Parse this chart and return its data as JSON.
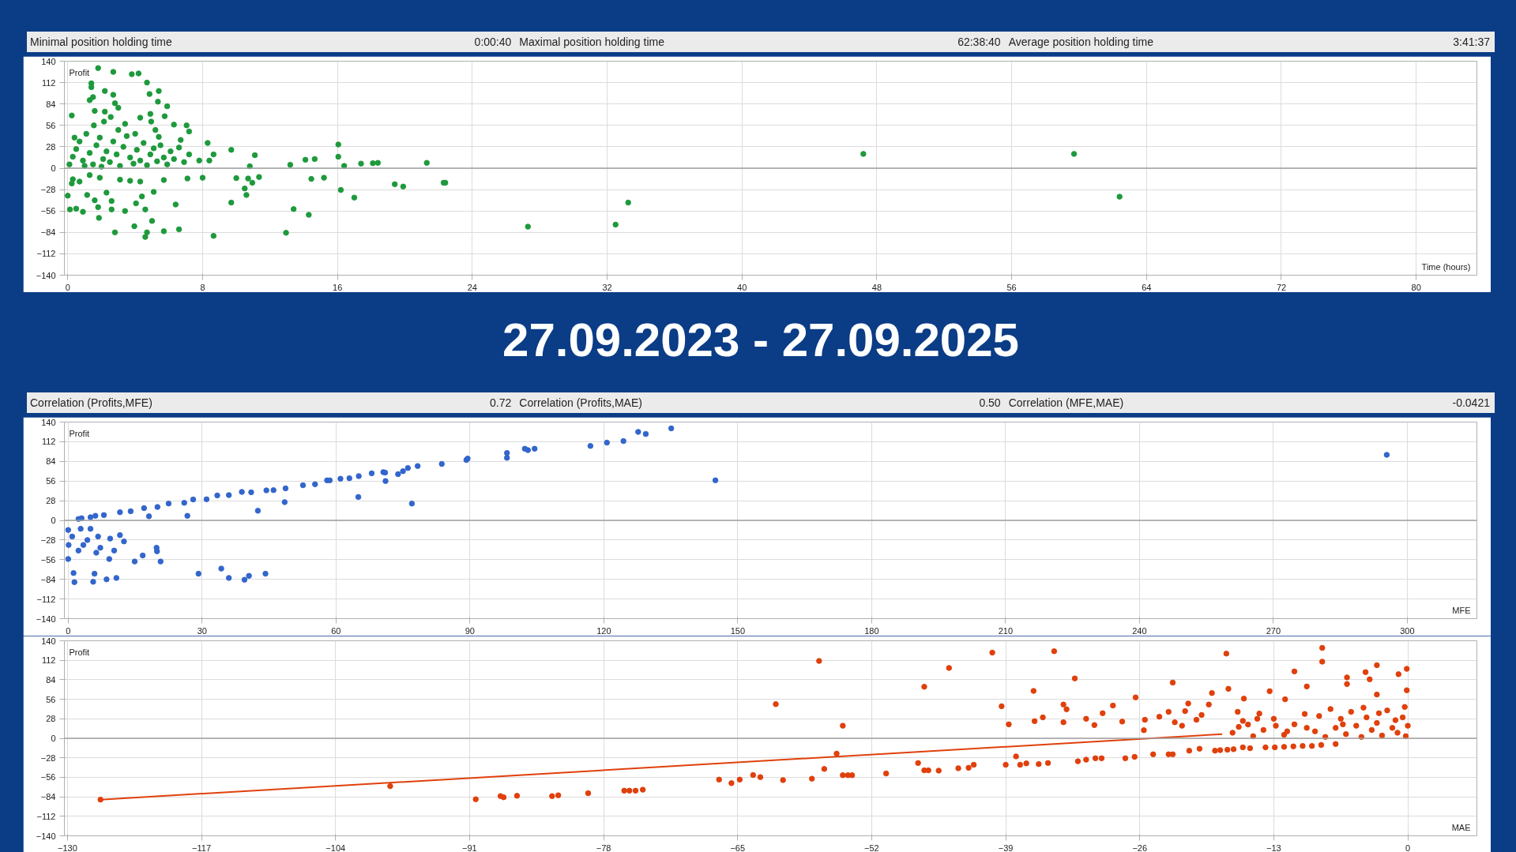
{
  "chart_data": [
    {
      "type": "scatter",
      "xlabel": "Time (hours)",
      "ylabel": "Profit",
      "annotations": [
        "Minimal position holding time",
        "0:00:40",
        "Maximal position holding time",
        "62:38:40",
        "Average position holding time",
        "3:41:37"
      ],
      "xlim": [
        -0.2,
        83.6
      ],
      "ylim": [
        -140,
        140
      ],
      "xticks": [
        0,
        8,
        16,
        24,
        32,
        40,
        48,
        56,
        64,
        72,
        80
      ],
      "yticks": [
        -140,
        -112,
        -84,
        -56,
        -28,
        0,
        28,
        56,
        84,
        112,
        140
      ],
      "grid": true,
      "marker": "circle",
      "ref_lines": [
        {
          "axis": "y",
          "value": 0,
          "color": "#a0a0a0"
        }
      ],
      "series": [
        {
          "color": "#1e9a3c",
          "x": [
            1.8,
            2.7,
            3.8,
            4.2,
            4.7,
            1.4,
            1.4,
            2.2,
            5.4,
            4.85,
            2.7,
            1.5,
            1.3,
            5.35,
            2.8,
            5.9,
            3.0,
            1.6,
            2.2,
            0.24,
            4.9,
            2.55,
            4.3,
            5.75,
            2.15,
            4.95,
            1.55,
            6.3,
            7.05,
            3.4,
            5.2,
            7.2,
            5.4,
            6.7,
            8.3,
            9.7,
            11.1,
            8.65,
            16.05,
            16.05,
            16.4,
            17.4,
            18.1,
            18.4,
            21.3,
            13.2,
            14.1,
            14.65,
            10.8,
            7.8,
            8.4,
            0.1,
            0.3,
            0.5,
            0.7,
            0.9,
            1.1,
            1.3,
            1.5,
            1.7,
            1.9,
            2.1,
            2.3,
            2.5,
            2.7,
            2.9,
            3.1,
            3.3,
            3.5,
            3.7,
            3.9,
            4.1,
            4.3,
            4.5,
            4.7,
            4.9,
            5.1,
            5.3,
            5.5,
            5.7,
            5.9,
            6.1,
            6.3,
            6.6,
            6.9,
            7.2,
            0.4,
            1.0,
            2.0,
            3.0,
            4.0,
            0.0,
            0.13,
            0.5,
            0.9,
            0.24,
            0.3,
            0.7,
            1.15,
            1.3,
            1.6,
            1.8,
            1.85,
            1.9,
            2.3,
            2.6,
            2.6,
            2.8,
            3.1,
            3.4,
            3.7,
            3.95,
            4.05,
            4.3,
            4.4,
            4.6,
            4.6,
            4.7,
            5.0,
            5.1,
            5.7,
            5.7,
            6.4,
            6.6,
            7.1,
            8.0,
            8.65,
            9.7,
            10.0,
            10.5,
            10.6,
            10.7,
            10.95,
            11.35,
            12.95,
            13.4,
            14.3,
            14.45,
            15.2,
            16.2,
            17.0,
            19.4,
            19.9,
            22.3,
            22.4,
            27.3,
            32.5,
            33.25,
            47.2,
            59.7,
            62.4
          ],
          "values": [
            131,
            126,
            123,
            124,
            112,
            111,
            106,
            101,
            101,
            97,
            96,
            93,
            89,
            87,
            85,
            81,
            79,
            75,
            74,
            69,
            71,
            67,
            66,
            68,
            61,
            61,
            56,
            57,
            56,
            58,
            50,
            48,
            41,
            37,
            33,
            24,
            17,
            18,
            31,
            15,
            3,
            6,
            6.5,
            7,
            7,
            4.5,
            11,
            12,
            2.5,
            10,
            10,
            5,
            15,
            25,
            35,
            10,
            45,
            20,
            5,
            30,
            40,
            12,
            22,
            8,
            35,
            18,
            3,
            28,
            42,
            14,
            6,
            24,
            10,
            33,
            4,
            18,
            26,
            9,
            30,
            14,
            5,
            22,
            12,
            27,
            8,
            18,
            40,
            3,
            2,
            50,
            45,
            -36,
            -54,
            -53,
            -57,
            -20,
            -14.5,
            -17.5,
            -35,
            -9,
            -42,
            -51,
            -65,
            -12.5,
            -32,
            -43,
            -54,
            -84,
            -15,
            -56,
            -16.5,
            -76,
            -46,
            -17.5,
            -37,
            -54,
            -90,
            -84,
            -69,
            -31,
            -15.5,
            -82.5,
            -47.5,
            -80,
            -13.5,
            -12.5,
            -88.5,
            -45,
            -13,
            -26.5,
            -35,
            -13.5,
            -19,
            -11.5,
            -84.5,
            -53.5,
            -61,
            -14,
            -12.5,
            -28.5,
            -38.5,
            -21,
            -24,
            -19,
            -19,
            -76.5,
            -73.8,
            -45,
            18.7,
            18.7,
            -37.3
          ]
        }
      ]
    },
    {
      "type": "other",
      "title": "27.09.2023 - 27.09.2025"
    },
    {
      "type": "scatter",
      "xlabel": "MFE",
      "ylabel": "Profit",
      "annotations": [
        "Correlation (Profits,MFE)",
        "0.72",
        "Correlation (Profits,MAE)",
        "0.50",
        "Correlation (MFE,MAE)",
        "-0.0421"
      ],
      "xlim": [
        -0.85,
        315.6
      ],
      "ylim": [
        -140,
        140
      ],
      "xticks": [
        0,
        30,
        60,
        90,
        120,
        150,
        180,
        210,
        240,
        270,
        300
      ],
      "yticks": [
        -140,
        -112,
        -84,
        -56,
        -28,
        0,
        28,
        56,
        84,
        112,
        140
      ],
      "grid": true,
      "marker": "circle",
      "ref_lines": [
        {
          "axis": "y",
          "value": 0,
          "color": "#a0a0a0"
        }
      ],
      "series": [
        {
          "color": "#3366cc",
          "x": [
            2.3,
            6.1,
            11.6,
            17.0,
            22.5,
            28.0,
            33.4,
            38.9,
            44.4,
            48.7,
            52.6,
            55.3,
            58.6,
            61.0,
            65.1,
            70.6,
            71.1,
            73.9,
            76.1,
            78.3,
            83.7,
            89.2,
            98.3,
            98.3,
            102.3,
            104.5,
            117.0,
            120.7,
            124.4,
            127.7,
            129.4,
            135.1,
            145,
            65.0,
            77.0,
            48.5,
            42.5,
            26.7,
            18.1,
            3,
            5,
            8,
            14,
            20,
            26,
            31,
            36,
            41,
            46,
            58,
            63,
            68,
            71,
            75,
            89.5,
            103,
            295.4,
            0,
            0.1,
            0,
            0.9,
            1.2,
            1.4,
            2.3,
            2.8,
            3.4,
            4.3,
            5.0,
            5.6,
            5.9,
            6.3,
            6.7,
            7.2,
            8.6,
            9.2,
            9.4,
            10.3,
            10.8,
            11.6,
            12.5,
            14.9,
            16.7,
            19.8,
            19.9,
            20.7,
            29.2,
            34.3,
            36.0,
            39.5,
            40.5,
            44.2
          ],
          "values": [
            2,
            6.5,
            11.6,
            17.4,
            24,
            29.7,
            35.5,
            40.5,
            42.7,
            45.6,
            50,
            51.4,
            57,
            59.3,
            63,
            68.7,
            56,
            65.8,
            74.5,
            77.4,
            80.3,
            86,
            96,
            89,
            102,
            102,
            106,
            110.7,
            112.9,
            126,
            123,
            131,
            57,
            33.3,
            23.9,
            26,
            13.7,
            6.5,
            5.8,
            3,
            4.5,
            7.5,
            13,
            19,
            25,
            30,
            36,
            40,
            43,
            57,
            60,
            67,
            68,
            70,
            88,
            100,
            93.3,
            -13.7,
            -35,
            -55,
            -23,
            -75,
            -88,
            -43,
            -12,
            -35,
            -28,
            -12,
            -87.5,
            -76,
            -46,
            -23,
            -39,
            -84,
            -55,
            -26,
            -43,
            -82,
            -21,
            -30,
            -58.6,
            -50,
            -39,
            -44,
            -58.6,
            -76,
            -68.7,
            -82,
            -84.6,
            -79,
            -76
          ]
        }
      ]
    },
    {
      "type": "scatter",
      "xlabel": "MAE",
      "ylabel": "Profit",
      "xlim": [
        -130.3,
        6.7
      ],
      "ylim": [
        -140,
        140
      ],
      "xticks": [
        -130,
        -117,
        -104,
        -91,
        -78,
        -65,
        -52,
        -39,
        -26,
        -13,
        0
      ],
      "yticks": [
        -140,
        -112,
        -84,
        -56,
        -28,
        0,
        28,
        56,
        84,
        112,
        140
      ],
      "grid": true,
      "marker": "circle",
      "ref_lines": [
        {
          "axis": "y",
          "value": 0,
          "color": "#a0a0a0"
        }
      ],
      "series": [
        {
          "color": "#e0400c",
          "x": [
            -126.8,
            -98.7,
            -90.4,
            -88,
            -87.7,
            -86.4,
            -83,
            -82.4,
            -79.5,
            -76,
            -75.5,
            -74.9,
            -74.2,
            -66.8,
            -65.6,
            -64.8,
            -63.5,
            -62.8,
            -61.3,
            -60.6,
            -57.8,
            -57.1,
            -56.6,
            -55.4,
            -54.8,
            -54.8,
            -54.3,
            -53.9,
            -50.6,
            -47.5,
            -46.9,
            -46.9,
            -46.5,
            -45.5,
            -44.5,
            -43.6,
            -42.6,
            -42.1,
            -40.3,
            -39.4,
            -39,
            -38.7,
            -38,
            -37.6,
            -37,
            -36.3,
            -36.2,
            -35.8,
            -34.9,
            -35.4,
            -34.3,
            -33.4,
            -33.1,
            -33.4,
            -32.3,
            -32,
            -31.2,
            -30.3,
            -29.7,
            -31.2,
            -30.4,
            -29.6,
            -28.6,
            -27.7,
            -27.4,
            -26.5,
            -26.4,
            -25.6,
            -25.5,
            -24.7,
            -24.1,
            -23.2,
            -23.2,
            -22.8,
            -22.8,
            -22.6,
            -21.9,
            -21.6,
            -21.2,
            -20.2,
            -21.3,
            -20.5,
            -20,
            -19.3,
            -19,
            -18.7,
            -18.2,
            -17.5,
            -16.9,
            -16,
            -15.3,
            -17.6,
            -17.4,
            -16.5,
            -15.9,
            -16.4,
            -15.5,
            -14.4,
            -13.4,
            -13.8,
            -12.9,
            -12,
            -11.1,
            -10.2,
            -9.3,
            -8.4,
            -11.9,
            -11,
            -9.8,
            -8.3,
            -8.3,
            -7,
            -5.9,
            -5.9,
            -4.1,
            -3.7,
            -3,
            -3,
            -0.9,
            -0.1,
            -0.1,
            -17,
            -16,
            -15,
            -14,
            -13,
            -12,
            -11,
            -10,
            -9,
            -8,
            -7.5,
            -7,
            -6.5,
            -6,
            -5.5,
            -5,
            -4.5,
            -4,
            -3.5,
            -3,
            -2.5,
            -2,
            -1.5,
            -1,
            -0.5,
            -0.2,
            0,
            -0.3,
            -1.2,
            -2.8,
            -4.3,
            -6.3,
            -8.6,
            -9.8,
            -11.7,
            -12.8,
            -14.6
          ],
          "values": [
            -88,
            -68.7,
            -87.5,
            -83,
            -84.7,
            -82.5,
            -83,
            -81.8,
            -78.9,
            -75.2,
            -75.2,
            -75.2,
            -73.8,
            -59.3,
            -64.4,
            -59.3,
            -52.8,
            -55.7,
            49,
            -60,
            -58,
            111,
            -44,
            -22,
            18,
            -53,
            -53,
            -53,
            -50.5,
            -35.5,
            74,
            -46,
            -46,
            -46.4,
            101,
            -43,
            -42.3,
            -38,
            123,
            46,
            -38,
            20,
            -26,
            -38,
            -36,
            68,
            24.6,
            -37,
            -35.5,
            30,
            125,
            48.5,
            41.7,
            23,
            86,
            -33,
            -30.7,
            -28.7,
            -28.7,
            28,
            19,
            36,
            47,
            24,
            -28.7,
            -26.6,
            58.7,
            11.6,
            26.6,
            -23,
            31,
            38,
            -23,
            -23,
            80,
            23,
            18,
            39,
            -17.8,
            -15,
            50,
            26.6,
            33.5,
            48.5,
            65,
            -17.8,
            -17,
            -16.4,
            -15.7,
            -13,
            -14.3,
            121.6,
            71,
            38,
            57,
            16.4,
            19.8,
            35.5,
            67.6,
            -13,
            -13,
            -12.3,
            -11.6,
            -11,
            -11,
            -9.6,
            56,
            96,
            74.4,
            129.8,
            110,
            -8.2,
            87.4,
            77.9,
            95,
            84.7,
            105,
            62.8,
            92,
            99.7,
            69,
            8,
            25,
            3,
            12,
            28,
            5,
            20,
            35,
            10,
            2,
            42,
            15,
            28,
            6,
            38,
            18,
            2,
            30,
            12,
            22,
            4,
            40,
            15,
            8,
            30,
            3,
            18,
            45,
            26,
            36,
            44,
            20,
            32,
            15,
            10,
            18,
            28
          ]
        },
        {
          "type": "line",
          "color": "#e0400c",
          "marker": "none",
          "x": [
            -126.8,
            -18
          ],
          "values": [
            -88,
            6
          ]
        }
      ]
    }
  ]
}
